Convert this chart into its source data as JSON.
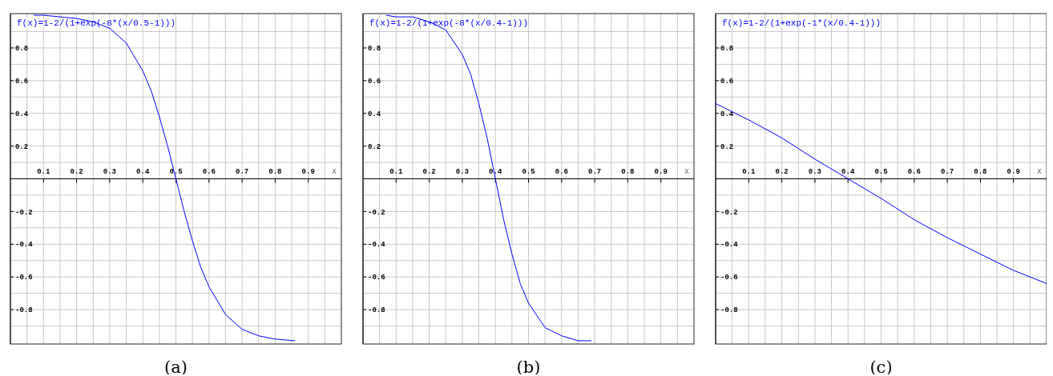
{
  "chart_data": [
    {
      "type": "line",
      "title": "f(x)=1-2/(1+exp(-8*(x/0.5-1)))",
      "xlabel": "x",
      "annotations": [
        "(a)"
      ],
      "xlim": [
        0,
        1
      ],
      "ylim": [
        -1.01,
        1.01
      ],
      "grid": true,
      "xticks": [
        {
          "value": 0.05,
          "label": null
        },
        0.1,
        {
          "value": 0.15,
          "label": null
        },
        0.2,
        {
          "value": 0.25,
          "label": null
        },
        0.3,
        {
          "value": 0.35,
          "label": null
        },
        0.4,
        {
          "value": 0.45,
          "label": null
        },
        0.5,
        {
          "value": 0.55,
          "label": null
        },
        0.6,
        {
          "value": 0.65,
          "label": null
        },
        0.7,
        {
          "value": 0.75,
          "label": null
        },
        0.8,
        {
          "value": 0.85,
          "label": null
        },
        0.9,
        {
          "value": 0.95,
          "label": null
        }
      ],
      "yticks": [
        {
          "value": -0.9,
          "label": null
        },
        -0.8,
        {
          "value": -0.7,
          "label": null
        },
        -0.6,
        {
          "value": -0.5,
          "label": null
        },
        -0.4,
        {
          "value": -0.3,
          "label": null
        },
        -0.2,
        {
          "value": -0.1,
          "label": null
        },
        {
          "value": 0.1,
          "label": null
        },
        0.2,
        {
          "value": 0.3,
          "label": null
        },
        0.4,
        {
          "value": 0.5,
          "label": null
        },
        0.6,
        {
          "value": 0.7,
          "label": null
        },
        0.8,
        {
          "value": 0.9,
          "label": null
        }
      ],
      "series": [
        {
          "color": "#0000ff",
          "x": [
            0.07,
            0.1,
            0.15,
            0.2,
            0.25,
            0.3,
            0.35,
            0.4,
            0.425,
            0.45,
            0.475,
            0.5,
            0.525,
            0.55,
            0.575,
            0.6,
            0.65,
            0.7,
            0.75,
            0.8,
            0.86
          ],
          "values": [
            1.0,
            1.0,
            0.99,
            0.98,
            0.96,
            0.92,
            0.83,
            0.66,
            0.54,
            0.38,
            0.2,
            0,
            -0.2,
            -0.38,
            -0.54,
            -0.66,
            -0.83,
            -0.92,
            -0.96,
            -0.98,
            -0.99
          ]
        }
      ]
    },
    {
      "type": "line",
      "title": "f(x)=1-2/(1+exp(-8*(x/0.4-1)))",
      "xlabel": "x",
      "annotations": [
        "(b)"
      ],
      "xlim": [
        0,
        1
      ],
      "ylim": [
        -1.01,
        1.01
      ],
      "grid": true,
      "xticks": [
        {
          "value": 0.05,
          "label": null
        },
        0.1,
        {
          "value": 0.15,
          "label": null
        },
        0.2,
        {
          "value": 0.25,
          "label": null
        },
        0.3,
        {
          "value": 0.35,
          "label": null
        },
        0.4,
        {
          "value": 0.45,
          "label": null
        },
        0.5,
        {
          "value": 0.55,
          "label": null
        },
        0.6,
        {
          "value": 0.65,
          "label": null
        },
        0.7,
        {
          "value": 0.75,
          "label": null
        },
        0.8,
        {
          "value": 0.85,
          "label": null
        },
        0.9,
        {
          "value": 0.95,
          "label": null
        }
      ],
      "yticks": [
        {
          "value": -0.9,
          "label": null
        },
        -0.8,
        {
          "value": -0.7,
          "label": null
        },
        -0.6,
        {
          "value": -0.5,
          "label": null
        },
        -0.4,
        {
          "value": -0.3,
          "label": null
        },
        -0.2,
        {
          "value": -0.1,
          "label": null
        },
        {
          "value": 0.1,
          "label": null
        },
        0.2,
        {
          "value": 0.3,
          "label": null
        },
        0.4,
        {
          "value": 0.5,
          "label": null
        },
        0.6,
        {
          "value": 0.7,
          "label": null
        },
        0.8,
        {
          "value": 0.9,
          "label": null
        }
      ],
      "series": [
        {
          "color": "#0000ff",
          "x": [
            0.07,
            0.1,
            0.15,
            0.2,
            0.25,
            0.3,
            0.325,
            0.35,
            0.375,
            0.4,
            0.425,
            0.45,
            0.475,
            0.5,
            0.55,
            0.6,
            0.65,
            0.69
          ],
          "values": [
            1.0,
            0.99,
            0.99,
            0.96,
            0.91,
            0.76,
            0.64,
            0.46,
            0.25,
            0,
            -0.25,
            -0.46,
            -0.64,
            -0.76,
            -0.91,
            -0.96,
            -0.99,
            -0.99
          ]
        }
      ]
    },
    {
      "type": "line",
      "title": "f(x)=1-2/(1+exp(-1*(x/0.4-1)))",
      "xlabel": "x",
      "annotations": [
        "(c)"
      ],
      "xlim": [
        0,
        1
      ],
      "ylim": [
        -1.01,
        1.01
      ],
      "grid": true,
      "xticks": [
        {
          "value": 0.05,
          "label": null
        },
        0.1,
        {
          "value": 0.15,
          "label": null
        },
        0.2,
        {
          "value": 0.25,
          "label": null
        },
        0.3,
        {
          "value": 0.35,
          "label": null
        },
        0.4,
        {
          "value": 0.45,
          "label": null
        },
        0.5,
        {
          "value": 0.55,
          "label": null
        },
        0.6,
        {
          "value": 0.65,
          "label": null
        },
        0.7,
        {
          "value": 0.75,
          "label": null
        },
        0.8,
        {
          "value": 0.85,
          "label": null
        },
        0.9,
        {
          "value": 0.95,
          "label": null
        }
      ],
      "yticks": [
        {
          "value": -0.9,
          "label": null
        },
        -0.8,
        {
          "value": -0.7,
          "label": null
        },
        -0.6,
        {
          "value": -0.5,
          "label": null
        },
        -0.4,
        {
          "value": -0.3,
          "label": null
        },
        -0.2,
        {
          "value": -0.1,
          "label": null
        },
        {
          "value": 0.1,
          "label": null
        },
        0.2,
        {
          "value": 0.3,
          "label": null
        },
        0.4,
        {
          "value": 0.5,
          "label": null
        },
        0.6,
        {
          "value": 0.7,
          "label": null
        },
        0.8,
        {
          "value": 0.9,
          "label": null
        }
      ],
      "series": [
        {
          "color": "#0000ff",
          "x": [
            0,
            0.1,
            0.2,
            0.3,
            0.4,
            0.5,
            0.6,
            0.7,
            0.8,
            0.9,
            1.0
          ],
          "values": [
            0.46,
            0.36,
            0.25,
            0.12,
            0,
            -0.12,
            -0.25,
            -0.36,
            -0.46,
            -0.56,
            -0.64
          ]
        }
      ]
    }
  ]
}
